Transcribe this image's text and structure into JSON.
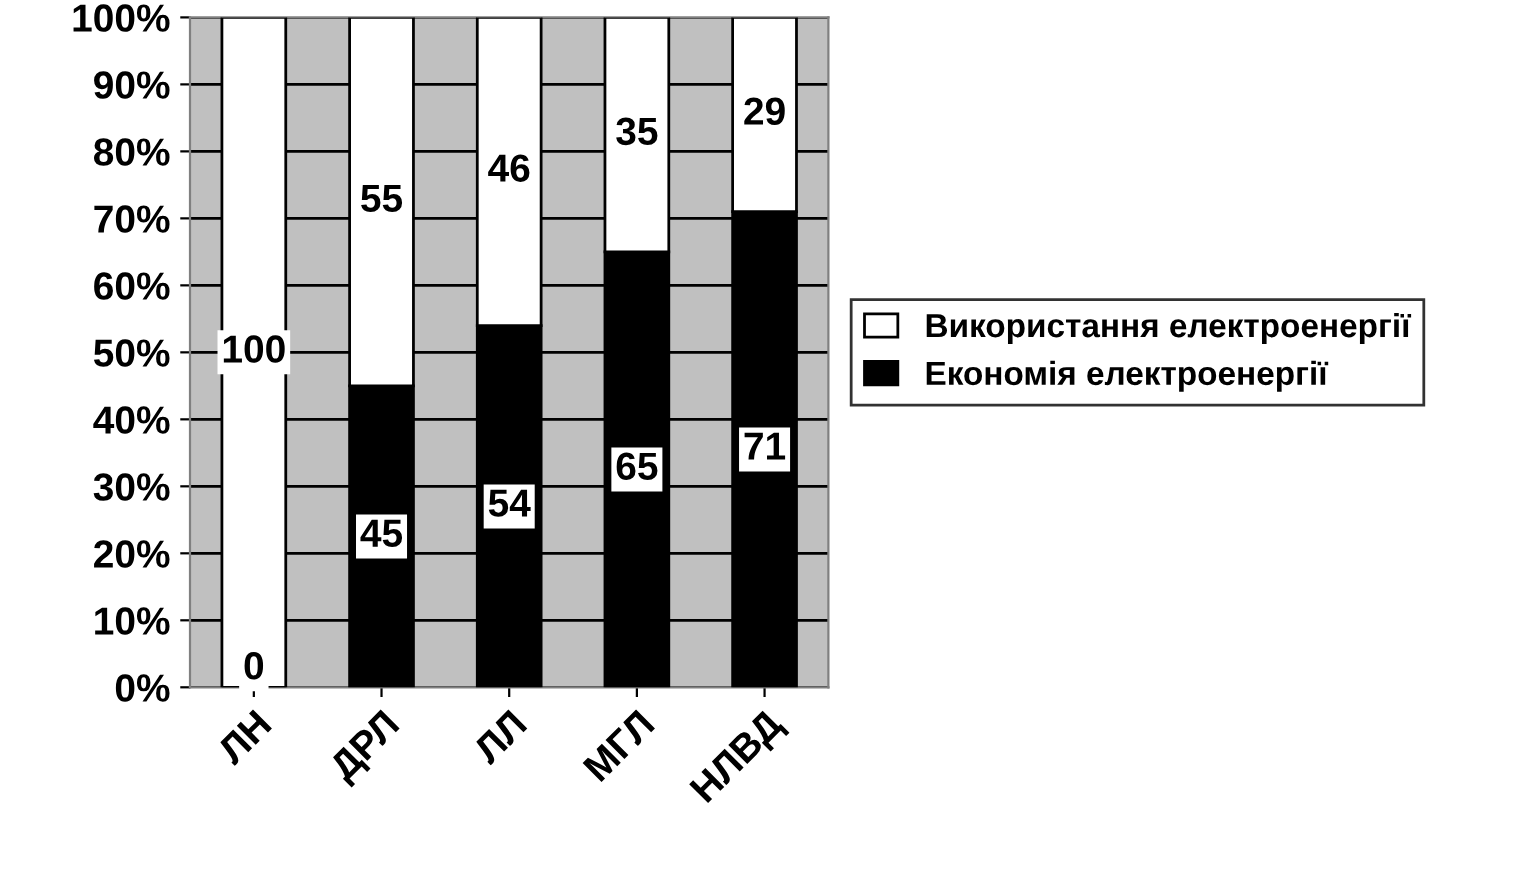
{
  "chart_data": {
    "type": "bar",
    "stacked": true,
    "categories": [
      "ЛН",
      "ДРЛ",
      "ЛЛ",
      "МГЛ",
      "НЛВД"
    ],
    "series": [
      {
        "name": "Економія електроенергії",
        "color": "#000000",
        "values": [
          0,
          45,
          54,
          65,
          71
        ]
      },
      {
        "name": "Використання електроенергії",
        "color": "#ffffff",
        "values": [
          100,
          55,
          46,
          35,
          29
        ]
      }
    ],
    "ylim": [
      0,
      100
    ],
    "yticks": [
      {
        "value": 0,
        "label": "0%"
      },
      {
        "value": 10,
        "label": "10%"
      },
      {
        "value": 20,
        "label": "20%"
      },
      {
        "value": 30,
        "label": "30%"
      },
      {
        "value": 40,
        "label": "40%"
      },
      {
        "value": 50,
        "label": "50%"
      },
      {
        "value": 60,
        "label": "60%"
      },
      {
        "value": 70,
        "label": "70%"
      },
      {
        "value": 80,
        "label": "80%"
      },
      {
        "value": 90,
        "label": "90%"
      },
      {
        "value": 100,
        "label": "100%"
      }
    ],
    "grid": "y",
    "legend": "right",
    "data_labels": true
  }
}
